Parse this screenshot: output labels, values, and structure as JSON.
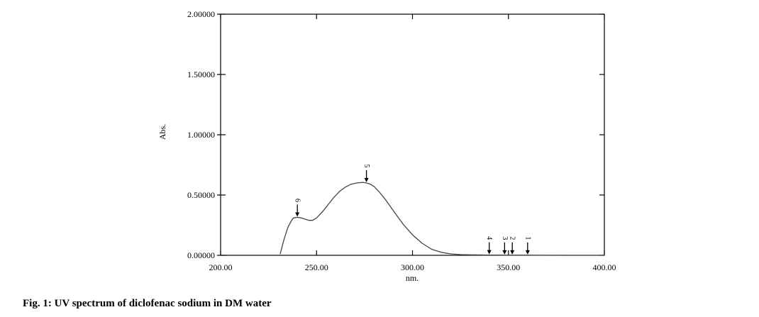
{
  "caption": "Fig. 1: UV spectrum of diclofenac sodium in DM water",
  "chart_data": {
    "type": "line",
    "xlabel": "nm.",
    "ylabel": "Abs.",
    "xlim": [
      200,
      400
    ],
    "ylim": [
      0,
      2
    ],
    "grid": false,
    "x_ticks": [
      "200.00",
      "250.00",
      "300.00",
      "350.00",
      "400.00"
    ],
    "y_ticks": [
      "0.00000",
      "0.50000",
      "1.00000",
      "1.50000",
      "2.00000"
    ],
    "series": [
      {
        "x": [
          231,
          233,
          235,
          237,
          238,
          240,
          242,
          244,
          246,
          248,
          250,
          253,
          256,
          259,
          262,
          265,
          268,
          271,
          274,
          276,
          278,
          280,
          283,
          286,
          290,
          295,
          300,
          305,
          310,
          315,
          320,
          325,
          330,
          340,
          350,
          360,
          380,
          400
        ],
        "y": [
          0.01,
          0.13,
          0.23,
          0.29,
          0.31,
          0.315,
          0.31,
          0.3,
          0.29,
          0.29,
          0.31,
          0.36,
          0.42,
          0.48,
          0.53,
          0.565,
          0.59,
          0.6,
          0.605,
          0.6,
          0.59,
          0.57,
          0.52,
          0.46,
          0.37,
          0.26,
          0.17,
          0.1,
          0.05,
          0.025,
          0.012,
          0.006,
          0.004,
          0.002,
          0.001,
          0.001,
          0.0,
          0.0
        ]
      }
    ],
    "peaks": [
      {
        "label": "1",
        "x": 360,
        "y": 0.001
      },
      {
        "label": "2",
        "x": 352,
        "y": 0.001
      },
      {
        "label": "3",
        "x": 348,
        "y": 0.001
      },
      {
        "label": "4",
        "x": 340,
        "y": 0.002
      },
      {
        "label": "5",
        "x": 276,
        "y": 0.6
      },
      {
        "label": "6",
        "x": 240,
        "y": 0.315
      }
    ]
  }
}
